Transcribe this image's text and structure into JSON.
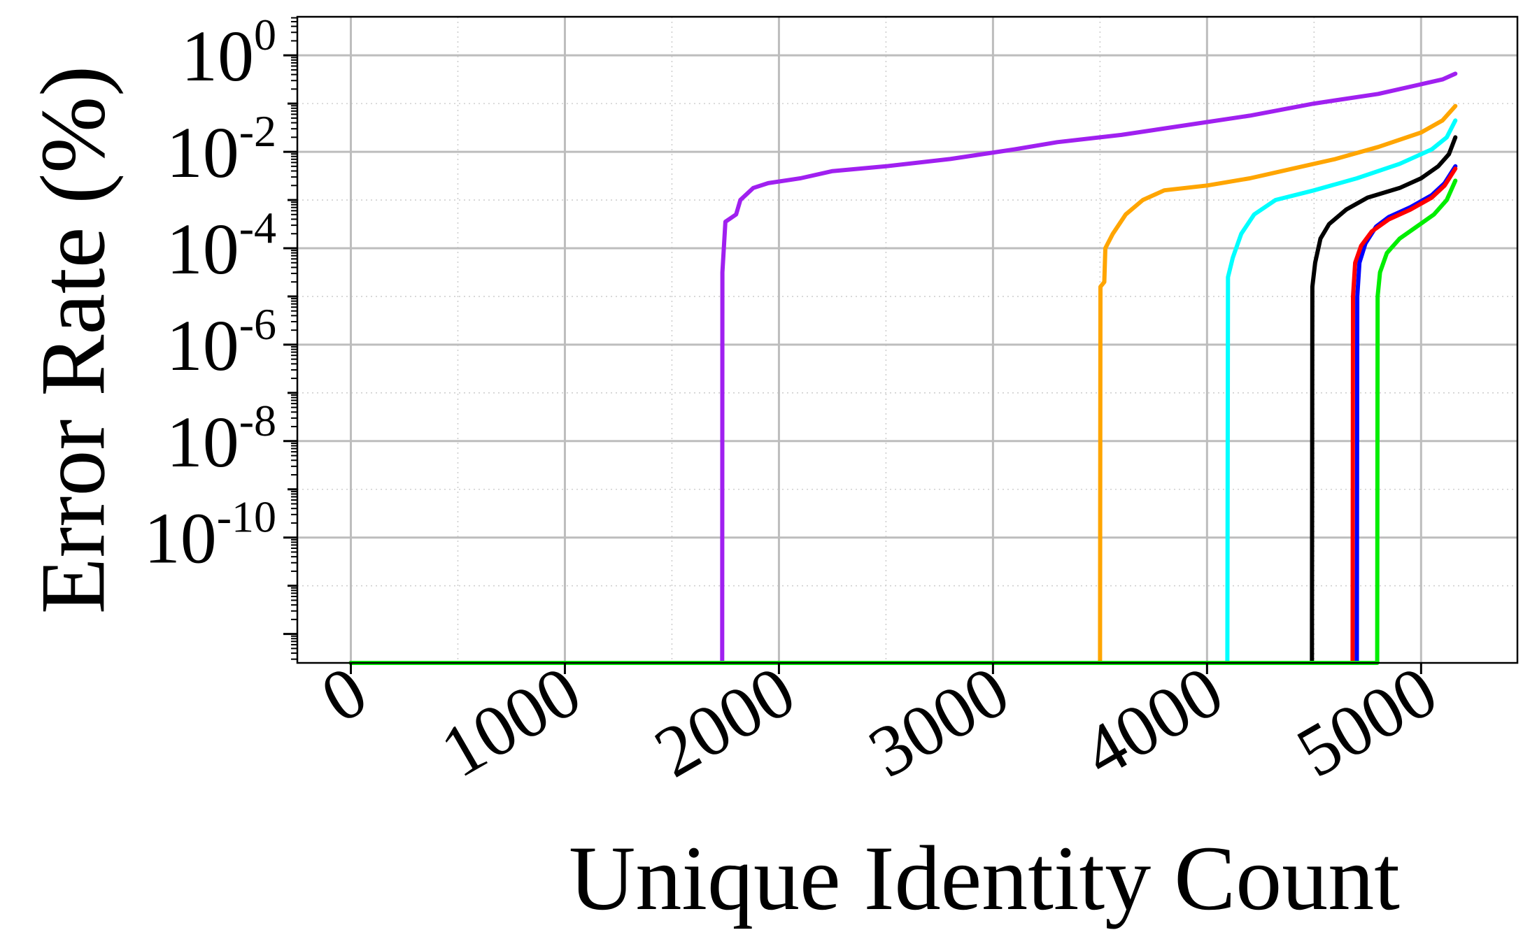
{
  "chart_data": {
    "type": "line",
    "title": "",
    "xlabel": "Unique Identity Count",
    "ylabel": "Error Rate (%)",
    "xlim": [
      -250,
      5450
    ],
    "ylim_exponent": [
      -12.6,
      0.8
    ],
    "y_scale": "log",
    "grid": true,
    "minor_grid": true,
    "legend": "none",
    "x_ticks": [
      0,
      1000,
      2000,
      3000,
      4000,
      5000
    ],
    "x_tick_labels": [
      "0",
      "1000",
      "2000",
      "3000",
      "4000",
      "5000"
    ],
    "y_ticks_exponent": [
      0,
      -2,
      -4,
      -6,
      -8,
      -10
    ],
    "y_tick_base": "10",
    "y_tick_exponent_labels": [
      "0",
      "-2",
      "-4",
      "-6",
      "-8",
      "-10"
    ],
    "series": [
      {
        "color": "#a020f0",
        "points": [
          [
            0,
            -12.6
          ],
          [
            1735,
            -12.6
          ],
          [
            1736,
            -4.5
          ],
          [
            1750,
            -3.45
          ],
          [
            1800,
            -3.3
          ],
          [
            1820,
            -3.0
          ],
          [
            1880,
            -2.75
          ],
          [
            1950,
            -2.65
          ],
          [
            2100,
            -2.55
          ],
          [
            2250,
            -2.4
          ],
          [
            2500,
            -2.3
          ],
          [
            2800,
            -2.15
          ],
          [
            3100,
            -1.95
          ],
          [
            3300,
            -1.8
          ],
          [
            3600,
            -1.65
          ],
          [
            3900,
            -1.45
          ],
          [
            4200,
            -1.25
          ],
          [
            4500,
            -1.0
          ],
          [
            4800,
            -0.8
          ],
          [
            5000,
            -0.6
          ],
          [
            5100,
            -0.5
          ],
          [
            5160,
            -0.38
          ]
        ]
      },
      {
        "color": "#ffa500",
        "points": [
          [
            0,
            -12.6
          ],
          [
            3500,
            -12.6
          ],
          [
            3502,
            -4.8
          ],
          [
            3520,
            -4.7
          ],
          [
            3525,
            -4.0
          ],
          [
            3560,
            -3.7
          ],
          [
            3620,
            -3.3
          ],
          [
            3700,
            -3.0
          ],
          [
            3800,
            -2.8
          ],
          [
            4000,
            -2.7
          ],
          [
            4200,
            -2.55
          ],
          [
            4400,
            -2.35
          ],
          [
            4600,
            -2.15
          ],
          [
            4800,
            -1.9
          ],
          [
            5000,
            -1.6
          ],
          [
            5100,
            -1.35
          ],
          [
            5160,
            -1.05
          ]
        ]
      },
      {
        "color": "#00ffff",
        "points": [
          [
            0,
            -12.6
          ],
          [
            4095,
            -12.6
          ],
          [
            4098,
            -4.6
          ],
          [
            4120,
            -4.2
          ],
          [
            4160,
            -3.7
          ],
          [
            4220,
            -3.3
          ],
          [
            4320,
            -3.0
          ],
          [
            4500,
            -2.8
          ],
          [
            4700,
            -2.55
          ],
          [
            4900,
            -2.25
          ],
          [
            5050,
            -1.95
          ],
          [
            5120,
            -1.7
          ],
          [
            5160,
            -1.35
          ]
        ]
      },
      {
        "color": "#000000",
        "points": [
          [
            0,
            -12.6
          ],
          [
            4490,
            -12.6
          ],
          [
            4492,
            -4.8
          ],
          [
            4505,
            -4.3
          ],
          [
            4530,
            -3.8
          ],
          [
            4570,
            -3.5
          ],
          [
            4650,
            -3.2
          ],
          [
            4750,
            -2.95
          ],
          [
            4900,
            -2.75
          ],
          [
            5000,
            -2.55
          ],
          [
            5080,
            -2.3
          ],
          [
            5130,
            -2.05
          ],
          [
            5160,
            -1.7
          ]
        ]
      },
      {
        "color": "#0000ff",
        "points": [
          [
            0,
            -12.6
          ],
          [
            4700,
            -12.6
          ],
          [
            4702,
            -5.0
          ],
          [
            4712,
            -4.3
          ],
          [
            4740,
            -3.9
          ],
          [
            4790,
            -3.55
          ],
          [
            4850,
            -3.35
          ],
          [
            4950,
            -3.15
          ],
          [
            5050,
            -2.9
          ],
          [
            5110,
            -2.65
          ],
          [
            5160,
            -2.3
          ]
        ]
      },
      {
        "color": "#ff0000",
        "points": [
          [
            0,
            -12.6
          ],
          [
            4680,
            -12.6
          ],
          [
            4682,
            -5.0
          ],
          [
            4692,
            -4.3
          ],
          [
            4720,
            -3.95
          ],
          [
            4770,
            -3.65
          ],
          [
            4850,
            -3.4
          ],
          [
            4950,
            -3.2
          ],
          [
            5050,
            -2.95
          ],
          [
            5110,
            -2.7
          ],
          [
            5160,
            -2.35
          ]
        ]
      },
      {
        "color": "#00ee00",
        "points": [
          [
            0,
            -12.6
          ],
          [
            4795,
            -12.6
          ],
          [
            4797,
            -5.0
          ],
          [
            4808,
            -4.5
          ],
          [
            4840,
            -4.1
          ],
          [
            4900,
            -3.8
          ],
          [
            4980,
            -3.55
          ],
          [
            5060,
            -3.3
          ],
          [
            5120,
            -3.0
          ],
          [
            5160,
            -2.6
          ]
        ]
      }
    ]
  }
}
